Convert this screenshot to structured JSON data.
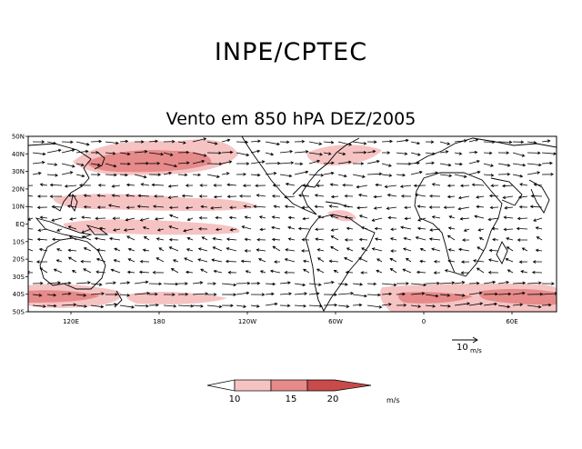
{
  "header": {
    "organization": "INPE/CPTEC",
    "map_title": "Vento em 850 hPA DEZ/2005"
  },
  "map": {
    "lat_ticks": [
      "50N",
      "40N",
      "30N",
      "20N",
      "10N",
      "EQ",
      "10S",
      "20S",
      "30S",
      "40S",
      "50S"
    ],
    "lon_ticks": [
      "120E",
      "180",
      "120W",
      "60W",
      "0",
      "60E"
    ],
    "reference_vector": {
      "value": "10",
      "unit": "m/s"
    }
  },
  "legend": {
    "levels": [
      "10",
      "15",
      "20"
    ],
    "unit": "m/s",
    "colors": [
      "#ffffff",
      "#f6c3c3",
      "#e68a8a",
      "#c84a4a"
    ]
  },
  "colors": {
    "shade_light": "#f6c3c3",
    "shade_mid": "#e68a8a",
    "shade_dark": "#c84a4a",
    "coast": "#000000"
  }
}
